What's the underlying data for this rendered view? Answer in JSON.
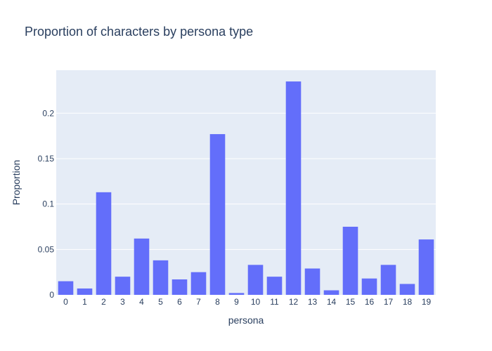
{
  "chart_data": {
    "type": "bar",
    "title": "Proportion of characters by persona type",
    "xlabel": "persona",
    "ylabel": "Proportion",
    "categories": [
      "0",
      "1",
      "2",
      "3",
      "4",
      "5",
      "6",
      "7",
      "8",
      "9",
      "10",
      "11",
      "12",
      "13",
      "14",
      "15",
      "16",
      "17",
      "18",
      "19"
    ],
    "values": [
      0.015,
      0.007,
      0.113,
      0.02,
      0.062,
      0.038,
      0.017,
      0.025,
      0.177,
      0.002,
      0.033,
      0.02,
      0.235,
      0.029,
      0.005,
      0.075,
      0.018,
      0.033,
      0.012,
      0.061
    ],
    "ylim": [
      0,
      0.2474
    ],
    "yticks": [
      0,
      0.05,
      0.1,
      0.15,
      0.2
    ],
    "ytick_labels": [
      "0",
      "0.05",
      "0.1",
      "0.15",
      "0.2"
    ],
    "grid": true,
    "legend": "none",
    "colors": {
      "bar": "#636efa",
      "plot_bg": "#e5ecf6",
      "grid": "#ffffff",
      "text": "#2a3f5f"
    }
  }
}
